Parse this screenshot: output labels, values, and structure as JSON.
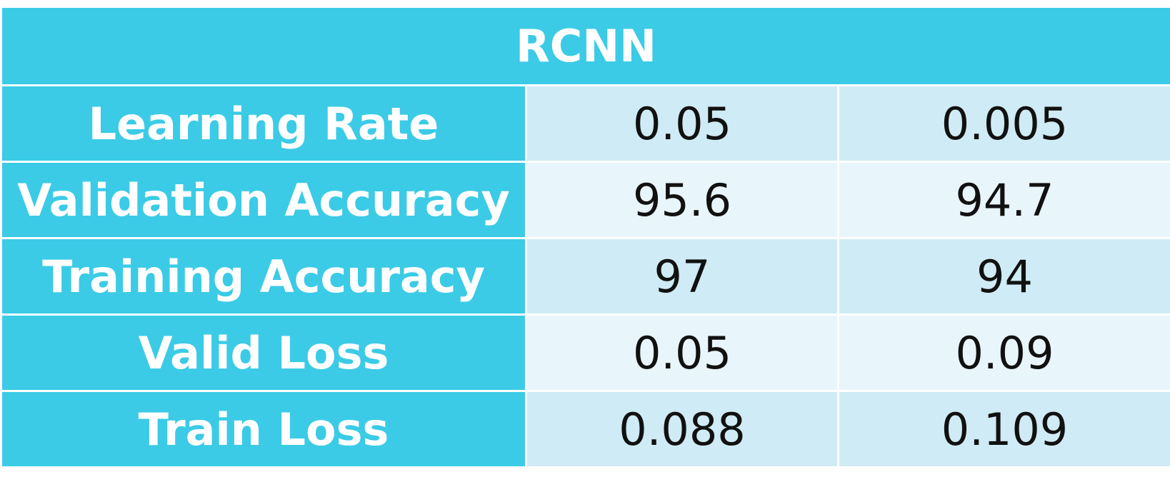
{
  "table": {
    "title": "RCNN",
    "rows": [
      {
        "label": "Learning Rate",
        "values": [
          "0.05",
          "0.005"
        ]
      },
      {
        "label": "Validation Accuracy",
        "values": [
          "95.6",
          "94.7"
        ]
      },
      {
        "label": "Training Accuracy",
        "values": [
          "97",
          "94"
        ]
      },
      {
        "label": "Valid Loss",
        "values": [
          "0.05",
          "0.09"
        ]
      },
      {
        "label": "Train Loss",
        "values": [
          "0.088",
          "0.109"
        ]
      }
    ]
  },
  "colors": {
    "header_bg": "#3bcbe6",
    "header_text": "#ffffff",
    "row_odd_bg": "#cfebf5",
    "row_even_bg": "#e8f5fa"
  }
}
